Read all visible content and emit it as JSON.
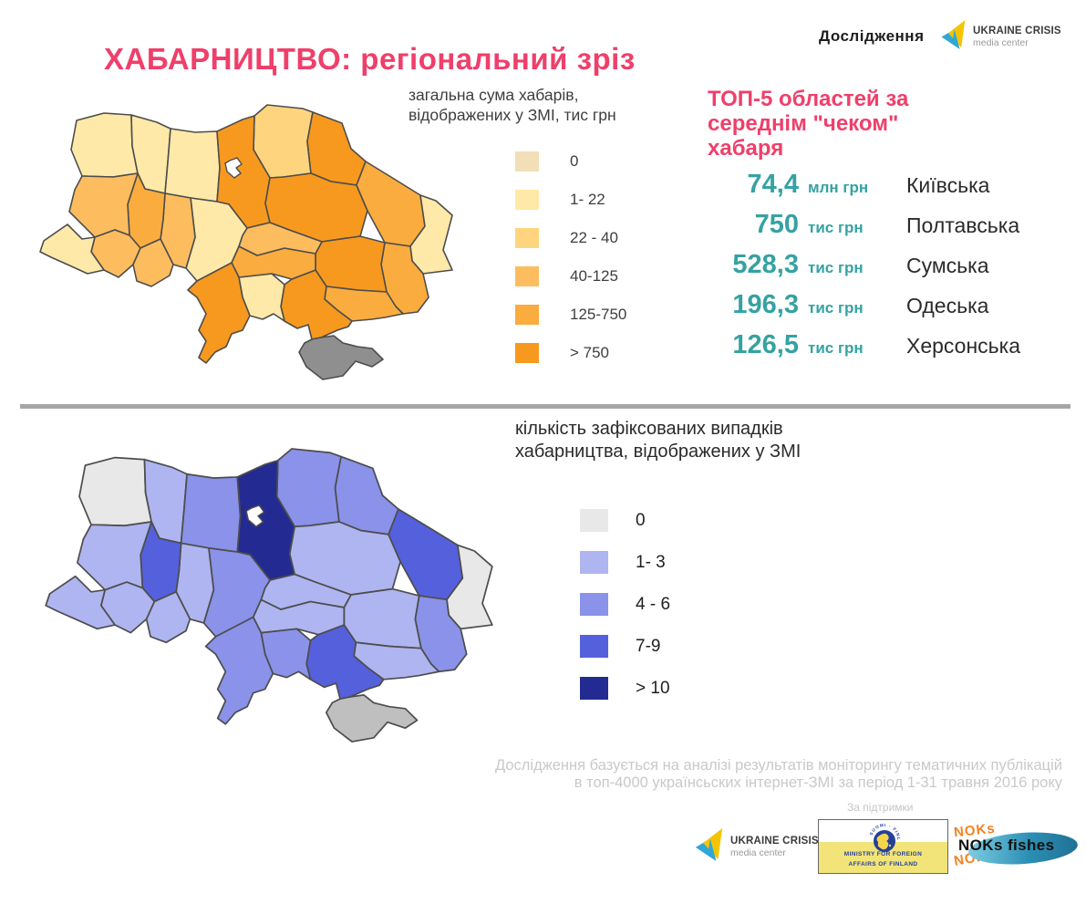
{
  "header": {
    "title": "ХАБАРНИЦТВО: регіональний зріз",
    "research_label": "Дослідження"
  },
  "ucmc": {
    "name": "UKRAINE CRISIS",
    "sub": "media center"
  },
  "maps": {
    "total": {
      "legend_title": "загальна сума хабарів,\nвідображених у ЗМІ, тис грн",
      "stroke": "#4D4D4D",
      "crimea_color": "#8F8F8F",
      "legend": [
        {
          "label": "0",
          "color": "#F2DFB7"
        },
        {
          "label": "1- 22",
          "color": "#FFE9A8"
        },
        {
          "label": "22 - 40",
          "color": "#FFD47F"
        },
        {
          "label": "40-125",
          "color": "#FDBD5F"
        },
        {
          "label": "125-750",
          "color": "#FBAC3E"
        },
        {
          "label": "> 750",
          "color": "#F7991E"
        }
      ],
      "region_levels": {
        "volyn": 1,
        "rivne": 1,
        "zhytomyr": 1,
        "kyiv": 5,
        "chernihiv": 2,
        "sumy": 5,
        "poltava": 5,
        "kharkiv": 4,
        "luhansk": 1,
        "donetsk": 4,
        "dnipro": 5,
        "zaporizhzhia": 4,
        "kherson": 5,
        "mykolaiv": 1,
        "kirovohrad": 4,
        "cherkasy": 3,
        "vinnytsia": 1,
        "khmelnytskyi": 3,
        "ternopil": 4,
        "lviv": 3,
        "ivano": 3,
        "zakarpattia": 1,
        "chernivtsi": 3,
        "odesa": 5,
        "crimea": -1
      }
    },
    "cases": {
      "legend_title": "кількість зафіксованих випадків\nхабарництва, відображених у ЗМІ",
      "stroke": "#4D4D4D",
      "crimea_color": "#BFBFBF",
      "legend": [
        {
          "label": "0",
          "color": "#E9E8E8"
        },
        {
          "label": "1- 3",
          "color": "#AEB5F0"
        },
        {
          "label": "4 - 6",
          "color": "#8A92E9"
        },
        {
          "label": "7-9",
          "color": "#5560DC"
        },
        {
          "label": "> 10",
          "color": "#232B92"
        }
      ],
      "region_levels": {
        "volyn": 0,
        "rivne": 1,
        "zhytomyr": 2,
        "kyiv": 4,
        "chernihiv": 2,
        "sumy": 2,
        "poltava": 1,
        "kharkiv": 3,
        "luhansk": 0,
        "donetsk": 2,
        "dnipro": 1,
        "zaporizhzhia": 1,
        "kherson": 3,
        "mykolaiv": 2,
        "kirovohrad": 1,
        "cherkasy": 1,
        "vinnytsia": 2,
        "khmelnytskyi": 1,
        "ternopil": 3,
        "lviv": 1,
        "ivano": 1,
        "zakarpattia": 1,
        "chernivtsi": 1,
        "odesa": 2,
        "crimea": -1
      }
    }
  },
  "top5": {
    "title": "ТОП-5 областей за\nсереднім \"чеком\"\nхабаря",
    "items": [
      {
        "value": "74,4",
        "unit": "млн грн",
        "region": "Київська"
      },
      {
        "value": "750",
        "unit": "тис грн",
        "region": "Полтавська"
      },
      {
        "value": "528,3",
        "unit": "тис грн",
        "region": "Сумська"
      },
      {
        "value": "196,3",
        "unit": "тис грн",
        "region": "Одеська"
      },
      {
        "value": "126,5",
        "unit": "тис грн",
        "region": "Херсонська"
      }
    ]
  },
  "footer": {
    "note": "Дослідження базується на аналізі результатів моніторингу тематичних публікацій\nв топ-4000 українсьских інтернет-ЗМІ за період 1-31 травня 2016 року",
    "support_label": "За підтримки"
  },
  "logos": {
    "finland": {
      "emblem_text": "SUOMI · FINLAND",
      "line1": "MINISTRY FOR FOREIGN",
      "line2": "AFFAIRS OF FINLAND"
    },
    "noks": {
      "label": "NOKs fishes",
      "echo": "NOKs"
    }
  },
  "chart_data": [
    {
      "type": "heatmap",
      "subtype": "choropleth-map",
      "title": "загальна сума хабарів, відображених у ЗМІ, тис грн",
      "categories": [
        "0",
        "1- 22",
        "22 - 40",
        "40-125",
        "125-750",
        "> 750"
      ],
      "palette": [
        "#F2DFB7",
        "#FFE9A8",
        "#FFD47F",
        "#FDBD5F",
        "#FBAC3E",
        "#F7991E"
      ],
      "region_bucket_index": {
        "volyn": 1,
        "rivne": 1,
        "zhytomyr": 1,
        "kyiv": 5,
        "chernihiv": 2,
        "sumy": 5,
        "poltava": 5,
        "kharkiv": 4,
        "luhansk": 1,
        "donetsk": 4,
        "dnipro": 5,
        "zaporizhzhia": 4,
        "kherson": 5,
        "mykolaiv": 1,
        "kirovohrad": 4,
        "cherkasy": 3,
        "vinnytsia": 1,
        "khmelnytskyi": 3,
        "ternopil": 4,
        "lviv": 3,
        "ivano": 3,
        "zakarpattia": 1,
        "chernivtsi": 3,
        "odesa": 5,
        "crimea": "no data"
      }
    },
    {
      "type": "heatmap",
      "subtype": "choropleth-map",
      "title": "кількість зафіксованих випадків хабарництва, відображених у ЗМІ",
      "categories": [
        "0",
        "1- 3",
        "4 - 6",
        "7-9",
        "> 10"
      ],
      "palette": [
        "#E9E8E8",
        "#AEB5F0",
        "#8A92E9",
        "#5560DC",
        "#232B92"
      ],
      "region_bucket_index": {
        "volyn": 0,
        "rivne": 1,
        "zhytomyr": 2,
        "kyiv": 4,
        "chernihiv": 2,
        "sumy": 2,
        "poltava": 1,
        "kharkiv": 3,
        "luhansk": 0,
        "donetsk": 2,
        "dnipro": 1,
        "zaporizhzhia": 1,
        "kherson": 3,
        "mykolaiv": 2,
        "kirovohrad": 1,
        "cherkasy": 1,
        "vinnytsia": 2,
        "khmelnytskyi": 1,
        "ternopil": 3,
        "lviv": 1,
        "ivano": 1,
        "zakarpattia": 1,
        "chernivtsi": 1,
        "odesa": 2,
        "crimea": "no data"
      }
    },
    {
      "type": "table",
      "title": "ТОП-5 областей за середнім \"чеком\" хабаря",
      "rows": [
        [
          "74,4 млн грн",
          "Київська"
        ],
        [
          "750 тис грн",
          "Полтавська"
        ],
        [
          "528,3 тис грн",
          "Сумська"
        ],
        [
          "196,3 тис грн",
          "Одеська"
        ],
        [
          "126,5 тис грн",
          "Херсонська"
        ]
      ]
    }
  ]
}
